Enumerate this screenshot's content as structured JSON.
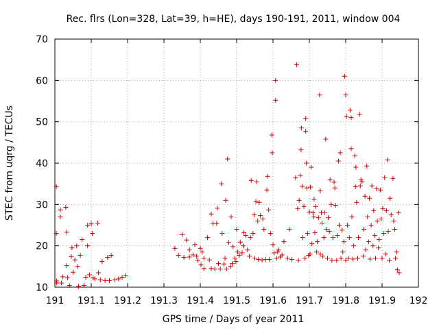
{
  "chart_data": {
    "type": "scatter",
    "title": "Rec. flrs (Lon=328, Lat=39, h=HE), days 190-191, 2011, window 004",
    "xlabel": "GPS time / Days of year 2011",
    "ylabel": "STEC from uqrg / TECUs",
    "xlim": [
      191,
      192
    ],
    "ylim": [
      10,
      70
    ],
    "xticks": [
      191,
      191.1,
      191.2,
      191.3,
      191.4,
      191.5,
      191.6,
      191.7,
      191.8,
      191.9,
      192
    ],
    "xtick_labels": [
      "191",
      "191.1",
      "191.2",
      "191.3",
      "191.4",
      "191.5",
      "191.6",
      "191.7",
      "191.8",
      "191.9",
      "192"
    ],
    "yticks": [
      10,
      20,
      30,
      40,
      50,
      60,
      70
    ],
    "ytick_labels": [
      "10",
      "20",
      "30",
      "40",
      "50",
      "60",
      "70"
    ],
    "grid": true,
    "marker": "+",
    "color": "#cc0000",
    "points": [
      [
        191.004,
        34.3
      ],
      [
        191.004,
        23.0
      ],
      [
        191.005,
        11.5
      ],
      [
        191.005,
        11.0
      ],
      [
        191.015,
        28.7
      ],
      [
        191.015,
        27.0
      ],
      [
        191.018,
        11.0
      ],
      [
        191.022,
        12.5
      ],
      [
        191.03,
        29.3
      ],
      [
        191.033,
        23.3
      ],
      [
        191.033,
        15.2
      ],
      [
        191.035,
        12.3
      ],
      [
        191.04,
        10.4
      ],
      [
        191.045,
        17.4
      ],
      [
        191.047,
        19.5
      ],
      [
        191.05,
        13.6
      ],
      [
        191.055,
        16.6
      ],
      [
        191.06,
        20.0
      ],
      [
        191.063,
        15.0
      ],
      [
        191.065,
        10.2
      ],
      [
        191.07,
        17.7
      ],
      [
        191.075,
        21.5
      ],
      [
        191.08,
        10.4
      ],
      [
        191.085,
        12.4
      ],
      [
        191.09,
        25.0
      ],
      [
        191.09,
        20.0
      ],
      [
        191.095,
        13.0
      ],
      [
        191.1,
        25.3
      ],
      [
        191.103,
        23.0
      ],
      [
        191.105,
        12.3
      ],
      [
        191.11,
        12.0
      ],
      [
        191.118,
        25.5
      ],
      [
        191.12,
        13.5
      ],
      [
        191.125,
        11.8
      ],
      [
        191.13,
        16.2
      ],
      [
        191.138,
        11.6
      ],
      [
        191.145,
        17.2
      ],
      [
        191.15,
        11.6
      ],
      [
        191.155,
        17.7
      ],
      [
        191.165,
        11.8
      ],
      [
        191.175,
        12.0
      ],
      [
        191.185,
        12.4
      ],
      [
        191.195,
        12.8
      ],
      [
        191.33,
        19.4
      ],
      [
        191.34,
        17.7
      ],
      [
        191.35,
        22.7
      ],
      [
        191.355,
        17.2
      ],
      [
        191.362,
        21.4
      ],
      [
        191.37,
        19.0
      ],
      [
        191.37,
        17.3
      ],
      [
        191.38,
        17.8
      ],
      [
        191.385,
        20.3
      ],
      [
        191.39,
        17.5
      ],
      [
        191.393,
        16.5
      ],
      [
        191.4,
        19.4
      ],
      [
        191.402,
        15.4
      ],
      [
        191.405,
        18.5
      ],
      [
        191.41,
        17.0
      ],
      [
        191.41,
        14.5
      ],
      [
        191.42,
        22.0
      ],
      [
        191.425,
        16.6
      ],
      [
        191.43,
        14.5
      ],
      [
        191.43,
        27.7
      ],
      [
        191.435,
        25.4
      ],
      [
        191.44,
        14.4
      ],
      [
        191.445,
        25.4
      ],
      [
        191.447,
        29.1
      ],
      [
        191.45,
        15.7
      ],
      [
        191.455,
        14.4
      ],
      [
        191.458,
        35.0
      ],
      [
        191.46,
        23.0
      ],
      [
        191.465,
        15.6
      ],
      [
        191.468,
        17.0
      ],
      [
        191.47,
        31.0
      ],
      [
        191.472,
        14.4
      ],
      [
        191.475,
        41.0
      ],
      [
        191.478,
        20.8
      ],
      [
        191.483,
        15.0
      ],
      [
        191.485,
        27.0
      ],
      [
        191.488,
        15.7
      ],
      [
        191.49,
        19.8
      ],
      [
        191.495,
        17.0
      ],
      [
        191.498,
        16.2
      ],
      [
        191.5,
        24.0
      ],
      [
        191.503,
        18.5
      ],
      [
        191.507,
        17.7
      ],
      [
        191.51,
        20.9
      ],
      [
        191.515,
        18.3
      ],
      [
        191.518,
        20.0
      ],
      [
        191.52,
        23.2
      ],
      [
        191.525,
        22.5
      ],
      [
        191.53,
        19.0
      ],
      [
        191.535,
        17.5
      ],
      [
        191.538,
        22.0
      ],
      [
        191.54,
        35.8
      ],
      [
        191.545,
        23.0
      ],
      [
        191.548,
        27.5
      ],
      [
        191.55,
        17.0
      ],
      [
        191.553,
        30.7
      ],
      [
        191.555,
        35.5
      ],
      [
        191.558,
        26.0
      ],
      [
        191.56,
        16.7
      ],
      [
        191.562,
        30.5
      ],
      [
        191.565,
        27.3
      ],
      [
        191.57,
        16.6
      ],
      [
        191.572,
        26.5
      ],
      [
        191.575,
        24.0
      ],
      [
        191.58,
        16.7
      ],
      [
        191.583,
        33.5
      ],
      [
        191.585,
        36.8
      ],
      [
        191.588,
        28.7
      ],
      [
        191.59,
        16.7
      ],
      [
        191.593,
        23.0
      ],
      [
        191.597,
        46.8
      ],
      [
        191.598,
        42.5
      ],
      [
        191.6,
        20.3
      ],
      [
        191.603,
        18.3
      ],
      [
        191.607,
        60.0
      ],
      [
        191.607,
        55.2
      ],
      [
        191.61,
        17.0
      ],
      [
        191.613,
        18.5
      ],
      [
        191.615,
        19.0
      ],
      [
        191.62,
        17.3
      ],
      [
        191.625,
        17.8
      ],
      [
        191.63,
        21.0
      ],
      [
        191.64,
        17.0
      ],
      [
        191.645,
        24.0
      ],
      [
        191.652,
        16.7
      ],
      [
        191.662,
        36.5
      ],
      [
        191.665,
        63.8
      ],
      [
        191.668,
        29.0
      ],
      [
        191.67,
        16.5
      ],
      [
        191.672,
        31.0
      ],
      [
        191.675,
        37.0
      ],
      [
        191.677,
        43.2
      ],
      [
        191.678,
        48.5
      ],
      [
        191.68,
        34.4
      ],
      [
        191.682,
        22.0
      ],
      [
        191.685,
        29.5
      ],
      [
        191.688,
        17.0
      ],
      [
        191.69,
        47.7
      ],
      [
        191.69,
        50.8
      ],
      [
        191.692,
        40.0
      ],
      [
        191.693,
        34.0
      ],
      [
        191.695,
        23.0
      ],
      [
        191.698,
        17.7
      ],
      [
        191.7,
        28.2
      ],
      [
        191.702,
        18.0
      ],
      [
        191.703,
        34.2
      ],
      [
        191.705,
        39.0
      ],
      [
        191.707,
        20.5
      ],
      [
        191.71,
        28.0
      ],
      [
        191.712,
        27.0
      ],
      [
        191.713,
        31.3
      ],
      [
        191.715,
        23.2
      ],
      [
        191.717,
        29.5
      ],
      [
        191.72,
        18.5
      ],
      [
        191.722,
        21.0
      ],
      [
        191.725,
        26.8
      ],
      [
        191.728,
        56.5
      ],
      [
        191.73,
        33.3
      ],
      [
        191.73,
        18.0
      ],
      [
        191.733,
        28.0
      ],
      [
        191.735,
        25.5
      ],
      [
        191.737,
        17.5
      ],
      [
        191.74,
        22.0
      ],
      [
        191.742,
        28.0
      ],
      [
        191.745,
        45.8
      ],
      [
        191.747,
        24.0
      ],
      [
        191.75,
        17.0
      ],
      [
        191.752,
        26.8
      ],
      [
        191.755,
        23.5
      ],
      [
        191.757,
        36.0
      ],
      [
        191.76,
        30.0
      ],
      [
        191.762,
        16.5
      ],
      [
        191.765,
        22.0
      ],
      [
        191.768,
        35.4
      ],
      [
        191.77,
        34.0
      ],
      [
        191.772,
        29.8
      ],
      [
        191.775,
        16.5
      ],
      [
        191.777,
        22.5
      ],
      [
        191.78,
        40.5
      ],
      [
        191.782,
        25.0
      ],
      [
        191.785,
        42.5
      ],
      [
        191.787,
        17.0
      ],
      [
        191.79,
        23.8
      ],
      [
        191.792,
        18.5
      ],
      [
        191.795,
        21.0
      ],
      [
        191.797,
        61.0
      ],
      [
        191.8,
        56.5
      ],
      [
        191.8,
        16.5
      ],
      [
        191.802,
        51.3
      ],
      [
        191.805,
        25.0
      ],
      [
        191.807,
        17.0
      ],
      [
        191.81,
        22.0
      ],
      [
        191.812,
        52.8
      ],
      [
        191.815,
        51.0
      ],
      [
        191.815,
        43.5
      ],
      [
        191.817,
        27.0
      ],
      [
        191.82,
        16.8
      ],
      [
        191.822,
        20.0
      ],
      [
        191.825,
        41.8
      ],
      [
        191.827,
        34.3
      ],
      [
        191.828,
        39.0
      ],
      [
        191.83,
        30.5
      ],
      [
        191.833,
        17.0
      ],
      [
        191.835,
        22.0
      ],
      [
        191.838,
        51.8
      ],
      [
        191.84,
        34.5
      ],
      [
        191.842,
        36.0
      ],
      [
        191.845,
        35.5
      ],
      [
        191.848,
        17.5
      ],
      [
        191.85,
        24.0
      ],
      [
        191.853,
        32.0
      ],
      [
        191.855,
        19.0
      ],
      [
        191.858,
        39.3
      ],
      [
        191.86,
        27.0
      ],
      [
        191.863,
        21.0
      ],
      [
        191.865,
        31.5
      ],
      [
        191.867,
        16.8
      ],
      [
        191.87,
        25.0
      ],
      [
        191.872,
        34.5
      ],
      [
        191.875,
        20.0
      ],
      [
        191.877,
        28.5
      ],
      [
        191.88,
        22.5
      ],
      [
        191.882,
        17.0
      ],
      [
        191.885,
        33.8
      ],
      [
        191.887,
        26.0
      ],
      [
        191.89,
        19.5
      ],
      [
        191.892,
        21.5
      ],
      [
        191.895,
        33.5
      ],
      [
        191.897,
        26.5
      ],
      [
        191.9,
        17.0
      ],
      [
        191.902,
        29.0
      ],
      [
        191.905,
        23.0
      ],
      [
        191.907,
        36.5
      ],
      [
        191.91,
        18.0
      ],
      [
        191.912,
        28.5
      ],
      [
        191.915,
        40.8
      ],
      [
        191.917,
        23.5
      ],
      [
        191.92,
        16.5
      ],
      [
        191.922,
        31.5
      ],
      [
        191.925,
        27.5
      ],
      [
        191.93,
        36.3
      ],
      [
        191.932,
        26.0
      ],
      [
        191.935,
        24.0
      ],
      [
        191.937,
        17.0
      ],
      [
        191.94,
        18.5
      ],
      [
        191.942,
        14.2
      ],
      [
        191.945,
        28.0
      ],
      [
        191.947,
        13.5
      ]
    ]
  }
}
